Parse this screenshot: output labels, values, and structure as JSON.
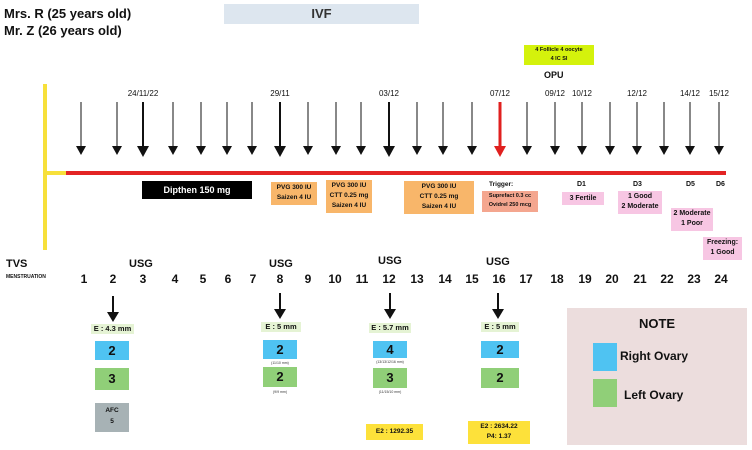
{
  "patients": [
    "Mrs. R (25 years old)",
    "Mr. Z (26 years old)"
  ],
  "title": "IVF",
  "opu_note": [
    "4 Follicle 4  oocyte",
    "4 IC SI"
  ],
  "opu_label": "OPU",
  "dates": [
    "24/11/22",
    "29/11",
    "03/12",
    "07/12",
    "09/12",
    "10/12",
    "12/12",
    "14/12",
    "15/12"
  ],
  "medications": {
    "dipthen": "Dipthen 150 mg",
    "box1": [
      "PVG 300 IU",
      "Saizen 4 IU"
    ],
    "box2": [
      "PVG 300 IU",
      "CTT 0.25 mg",
      "Saizen 4 IU"
    ],
    "box3": [
      "PVG 300 IU",
      "CTT 0.25 mg",
      "Saizen 4 IU"
    ],
    "trigger_label": "Trigger:",
    "trigger": [
      "Suprefact 0.3 cc",
      "Ovidrel 250 mcg"
    ]
  },
  "embryo": {
    "d1": "D1",
    "d1_box": "3  Fertile",
    "d3": "D3",
    "d3_box": [
      "1 Good",
      "2 Moderate"
    ],
    "d5": "D5",
    "d5_box": [
      "2 Moderate",
      "1 Poor"
    ],
    "d6": "D6",
    "d6_box": [
      "Freezing:",
      "1 Good"
    ]
  },
  "labels": {
    "tvs": "TVS",
    "menstruation": "MENSTRUATION",
    "usg": "USG"
  },
  "day_numbers": [
    "1",
    "2",
    "3",
    "4",
    "5",
    "6",
    "7",
    "8",
    "9",
    "10",
    "11",
    "12",
    "13",
    "14",
    "15",
    "16",
    "17",
    "18",
    "19",
    "20",
    "21",
    "22",
    "23",
    "24"
  ],
  "usg_columns": [
    {
      "e": "E : 4.3 mm",
      "right": "2",
      "left": "3",
      "right_sub": "",
      "left_sub": "",
      "afc_label": "AFC",
      "afc_value": "5"
    },
    {
      "e": "E : 5 mm",
      "right": "2",
      "left": "2",
      "right_sub": "(11/10 mm)",
      "left_sub": "(9/9 mm)"
    },
    {
      "e": "E : 5.7 mm",
      "right": "4",
      "left": "3",
      "right_sub": "(13/13/12/16 mm)",
      "left_sub": "(11/15/10 mm)"
    },
    {
      "e": "E : 5 mm",
      "right": "2",
      "left": "2",
      "right_sub": "",
      "left_sub": ""
    }
  ],
  "hormones": {
    "e2_a": "E2 : 1292.35",
    "e2_b": "E2 : 2634.22",
    "p4": "P4: 1.37"
  },
  "note": {
    "title": "NOTE",
    "right": "Right Ovary",
    "left": "Left Ovary",
    "right_color": "#4fc3f2",
    "left_color": "#90cf78"
  },
  "colors": {
    "timeline": "#e32424",
    "start_bar": "#f7e03a",
    "trigger_arrow": "#e0201f"
  }
}
